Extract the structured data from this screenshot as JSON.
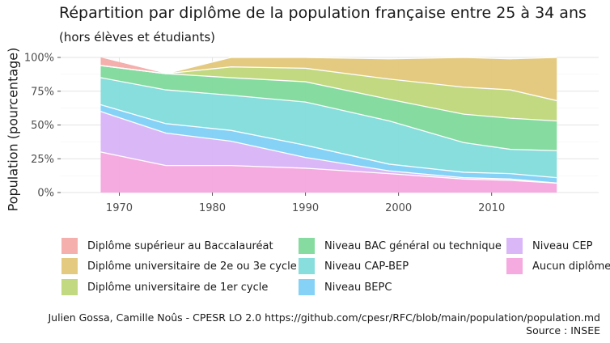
{
  "chart_data": {
    "type": "area",
    "title": "Répartition par diplôme de la population française entre 25 à 34 ans",
    "subtitle": "(hors élèves et étudiants)",
    "ylabel": "Population (pourcentage)",
    "xlabel": "",
    "x": [
      1968,
      1975,
      1982,
      1990,
      1999,
      2007,
      2012,
      2017
    ],
    "xlim": [
      1963.7,
      2021.5
    ],
    "ylim": [
      0,
      100
    ],
    "x_ticks": [
      "1970",
      "1980",
      "1990",
      "2000",
      "2010"
    ],
    "x_tick_values": [
      1970,
      1980,
      1990,
      2000,
      2010
    ],
    "y_ticks": [
      "0%",
      "25%",
      "50%",
      "75%",
      "100%"
    ],
    "y_tick_values": [
      0,
      25,
      50,
      75,
      100
    ],
    "grid": true,
    "legend_position": "bottom",
    "stacking": "percent, first series stacked on top",
    "series": [
      {
        "name": "Diplôme supérieur au Baccalauréat",
        "color": "#F4ABA8",
        "values": [
          6,
          0,
          0,
          0,
          0,
          0,
          0,
          0
        ]
      },
      {
        "name": "Diplôme universitaire de 2e ou 3e cycle",
        "color": "#E3C77A",
        "values": [
          0,
          0,
          7,
          8,
          15,
          22,
          23,
          32
        ]
      },
      {
        "name": "Diplôme universitaire de 1er cycle",
        "color": "#BFD77A",
        "values": [
          0,
          0,
          8,
          10,
          15,
          20,
          21,
          15
        ]
      },
      {
        "name": "Niveau BAC général ou technique",
        "color": "#80D99B",
        "values": [
          9,
          12,
          13,
          15,
          16,
          21,
          23,
          22
        ]
      },
      {
        "name": "Niveau CAP-BEP",
        "color": "#82DBDB",
        "values": [
          20,
          25,
          26,
          32,
          32,
          22,
          18,
          20
        ]
      },
      {
        "name": "Niveau BEPC",
        "color": "#7FD0F7",
        "values": [
          5,
          7,
          8,
          9,
          5,
          4,
          4,
          4
        ]
      },
      {
        "name": "Niveau CEP",
        "color": "#D8B4F7",
        "values": [
          30,
          24,
          18,
          8,
          2,
          1,
          1,
          0
        ]
      },
      {
        "name": "Aucun diplôme",
        "color": "#F4A6DE",
        "values": [
          30,
          20,
          20,
          18,
          14,
          10,
          9,
          7
        ]
      }
    ]
  },
  "caption": {
    "line1": "Julien Gossa, Camille Noûs - CPESR LO 2.0 https://github.com/cpesr/RFC/blob/main/population/population.md",
    "line2": "Source : INSEE"
  }
}
